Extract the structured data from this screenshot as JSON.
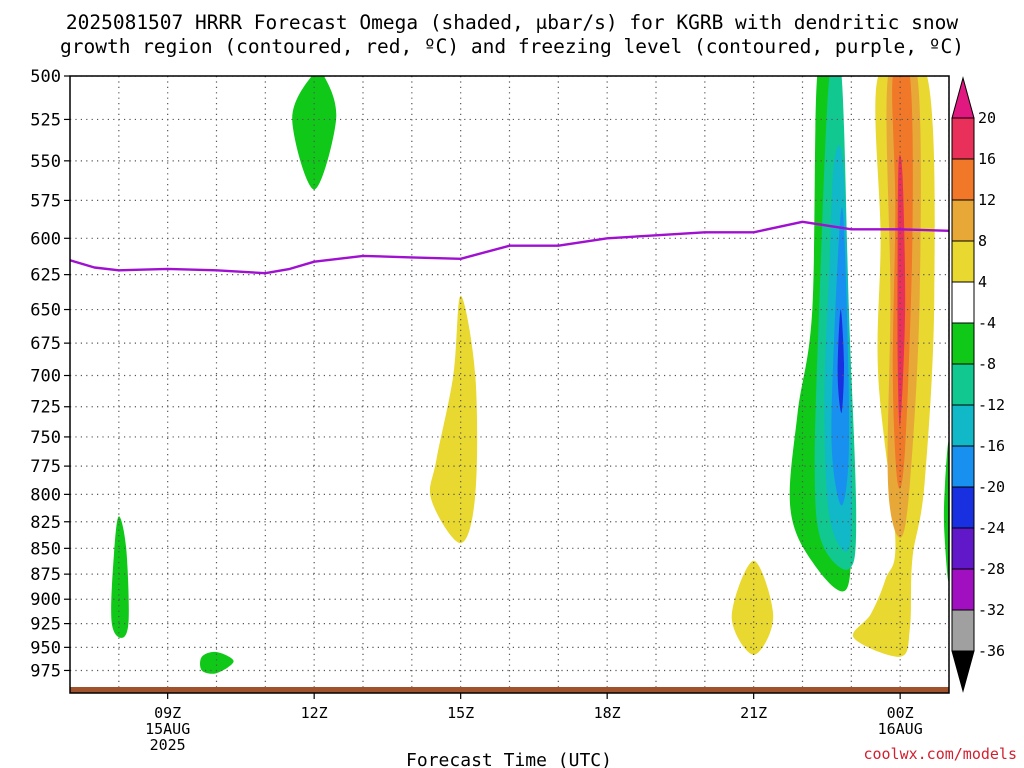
{
  "chart_data": {
    "type": "heatmap",
    "title_lines": [
      "2025081507 HRRR Forecast Omega (shaded, μbar/s) for KGRB with dendritic snow",
      "growth region (contoured, red, ºC) and freezing level (contoured, purple, ºC)"
    ],
    "xlabel": "Forecast Time (UTC)",
    "credit": "coolwx.com/models",
    "x_ticks": [
      {
        "hour": 9,
        "lines": [
          "09Z",
          "15AUG",
          "2025"
        ]
      },
      {
        "hour": 12,
        "lines": [
          "12Z"
        ]
      },
      {
        "hour": 15,
        "lines": [
          "15Z"
        ]
      },
      {
        "hour": 18,
        "lines": [
          "18Z"
        ]
      },
      {
        "hour": 21,
        "lines": [
          "21Z"
        ]
      },
      {
        "hour": 24,
        "lines": [
          "00Z",
          "16AUG"
        ]
      }
    ],
    "x_range_hours": [
      7,
      25
    ],
    "y_levels": [
      500,
      525,
      550,
      575,
      600,
      625,
      650,
      675,
      700,
      725,
      750,
      775,
      800,
      825,
      850,
      875,
      900,
      925,
      950,
      975
    ],
    "y_range_mb": [
      500,
      1000
    ],
    "y_scale": "log-pressure",
    "grid": true,
    "colorbar": {
      "labels": [
        "20",
        "16",
        "12",
        "8",
        "4",
        "-4",
        "-8",
        "-12",
        "-16",
        "-20",
        "-24",
        "-28",
        "-32",
        "-36"
      ],
      "colors": [
        "#e8305a",
        "#f07828",
        "#e8a838",
        "#e8d830",
        "#ffffff",
        "#10c818",
        "#10c890",
        "#10b8c8",
        "#1890f0",
        "#1830e0",
        "#6018c8",
        "#a010c0",
        "#a0a0a0"
      ],
      "top_arrow_color": "#e01880",
      "bottom_arrow_color": "#000000"
    },
    "freezing_level": {
      "color": "#a010d0",
      "points": [
        [
          7.0,
          615
        ],
        [
          7.5,
          620
        ],
        [
          8.0,
          622
        ],
        [
          9.0,
          621
        ],
        [
          10.0,
          622
        ],
        [
          11.0,
          624
        ],
        [
          11.5,
          621
        ],
        [
          12.0,
          616
        ],
        [
          13.0,
          612
        ],
        [
          14.0,
          613
        ],
        [
          15.0,
          614
        ],
        [
          16.0,
          605
        ],
        [
          17.0,
          605
        ],
        [
          18.0,
          600
        ],
        [
          19.0,
          598
        ],
        [
          20.0,
          596
        ],
        [
          21.0,
          596
        ],
        [
          22.0,
          589
        ],
        [
          23.0,
          594
        ],
        [
          24.0,
          594
        ],
        [
          25.0,
          595
        ]
      ]
    },
    "omega_regions": [
      {
        "name": "green-lobe-12z",
        "color": "#10c818",
        "points": [
          [
            11.95,
            500
          ],
          [
            12.2,
            500
          ],
          [
            12.45,
            525
          ],
          [
            12.0,
            568
          ],
          [
            11.55,
            525
          ]
        ]
      },
      {
        "name": "green-lobe-0800",
        "color": "#10c818",
        "points": [
          [
            8.0,
            820
          ],
          [
            8.15,
            850
          ],
          [
            8.2,
            922
          ],
          [
            8.05,
            940
          ],
          [
            7.85,
            922
          ],
          [
            7.9,
            855
          ]
        ]
      },
      {
        "name": "green-blob-1000",
        "color": "#10c818",
        "points": [
          [
            9.7,
            960
          ],
          [
            10.0,
            955
          ],
          [
            10.35,
            965
          ],
          [
            10.0,
            978
          ],
          [
            9.7,
            975
          ]
        ]
      },
      {
        "name": "yellow-lobe-15z",
        "color": "#e8d830",
        "points": [
          [
            15.0,
            640
          ],
          [
            15.3,
            700
          ],
          [
            15.3,
            800
          ],
          [
            15.0,
            845
          ],
          [
            14.4,
            805
          ],
          [
            14.5,
            770
          ],
          [
            14.85,
            700
          ]
        ]
      },
      {
        "name": "yellow-lobe-21z",
        "color": "#e8d830",
        "points": [
          [
            21.0,
            862
          ],
          [
            21.4,
            918
          ],
          [
            21.0,
            958
          ],
          [
            20.55,
            918
          ]
        ]
      },
      {
        "name": "green-column-23z",
        "color": "#10c818",
        "points": [
          [
            22.3,
            500
          ],
          [
            22.6,
            500
          ],
          [
            22.8,
            560
          ],
          [
            23.0,
            720
          ],
          [
            23.0,
            810
          ],
          [
            22.9,
            890
          ],
          [
            22.2,
            863
          ],
          [
            21.75,
            812
          ],
          [
            21.9,
            730
          ],
          [
            22.2,
            650
          ]
        ]
      },
      {
        "name": "teal-column-23z",
        "color": "#10c890",
        "points": [
          [
            22.55,
            500
          ],
          [
            22.8,
            500
          ],
          [
            22.95,
            650
          ],
          [
            23.1,
            820
          ],
          [
            22.95,
            870
          ],
          [
            22.4,
            845
          ],
          [
            22.25,
            780
          ],
          [
            22.35,
            640
          ]
        ]
      },
      {
        "name": "cyan-column-23z",
        "color": "#10b8c8",
        "points": [
          [
            22.65,
            550
          ],
          [
            22.85,
            560
          ],
          [
            23.0,
            760
          ],
          [
            22.95,
            850
          ],
          [
            22.55,
            820
          ],
          [
            22.45,
            720
          ],
          [
            22.55,
            620
          ]
        ]
      },
      {
        "name": "blue-column-23z",
        "color": "#1890f0",
        "points": [
          [
            22.8,
            580
          ],
          [
            22.9,
            640
          ],
          [
            22.95,
            760
          ],
          [
            22.8,
            810
          ],
          [
            22.6,
            760
          ],
          [
            22.65,
            670
          ]
        ]
      },
      {
        "name": "navy-core-23z",
        "color": "#1830e0",
        "points": [
          [
            22.78,
            650
          ],
          [
            22.85,
            690
          ],
          [
            22.8,
            730
          ],
          [
            22.72,
            700
          ]
        ]
      },
      {
        "name": "green-edge-25z",
        "color": "#10c818",
        "points": [
          [
            25.0,
            757
          ],
          [
            25.0,
            880
          ],
          [
            24.9,
            830
          ],
          [
            24.92,
            790
          ]
        ]
      },
      {
        "name": "yellow-column-0z",
        "color": "#e8d830",
        "points": [
          [
            23.55,
            500
          ],
          [
            24.55,
            500
          ],
          [
            24.7,
            640
          ],
          [
            24.5,
            790
          ],
          [
            24.25,
            860
          ],
          [
            24.2,
            930
          ],
          [
            24.0,
            960
          ],
          [
            23.05,
            940
          ],
          [
            23.4,
            915
          ],
          [
            23.7,
            880
          ],
          [
            23.9,
            840
          ],
          [
            23.55,
            700
          ],
          [
            23.6,
            600
          ]
        ]
      },
      {
        "name": "amber-column-0z",
        "color": "#e8a838",
        "points": [
          [
            23.75,
            500
          ],
          [
            24.35,
            500
          ],
          [
            24.4,
            640
          ],
          [
            24.2,
            790
          ],
          [
            24.0,
            840
          ],
          [
            23.75,
            790
          ],
          [
            23.8,
            640
          ]
        ]
      },
      {
        "name": "orange-column-0z",
        "color": "#f07828",
        "points": [
          [
            23.85,
            500
          ],
          [
            24.2,
            500
          ],
          [
            24.25,
            600
          ],
          [
            24.1,
            760
          ],
          [
            23.95,
            790
          ],
          [
            23.85,
            700
          ],
          [
            23.9,
            580
          ]
        ]
      },
      {
        "name": "red-core-0z",
        "color": "#e8305a",
        "points": [
          [
            23.97,
            550
          ],
          [
            24.05,
            560
          ],
          [
            24.1,
            650
          ],
          [
            24.0,
            740
          ],
          [
            23.95,
            690
          ],
          [
            23.95,
            600
          ]
        ]
      }
    ],
    "ground_color": "#a0522d"
  }
}
